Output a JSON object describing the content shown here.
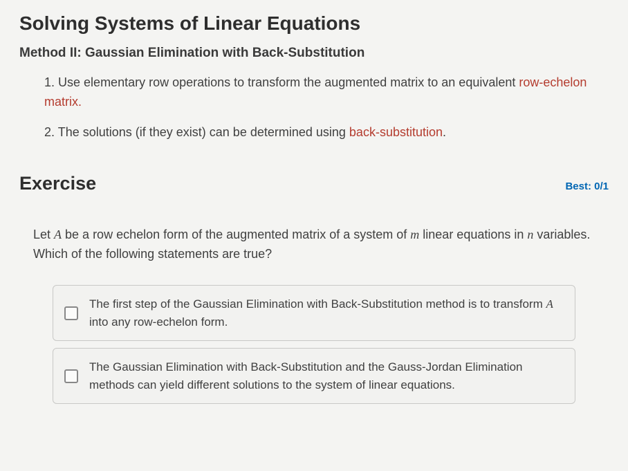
{
  "page_title": "Solving Systems of Linear Equations",
  "subtitle": "Method II: Gaussian Elimination with Back-Substitution",
  "steps": [
    {
      "num": "1.",
      "pre": "Use elementary row operations to transform the augmented matrix to an equivalent ",
      "keyword": "row-echelon matrix.",
      "post": ""
    },
    {
      "num": "2.",
      "pre": "The solutions (if they exist) can be determined using ",
      "keyword": "back-substitution",
      "post": "."
    }
  ],
  "exercise": {
    "title": "Exercise",
    "best_label": "Best: 0/1",
    "question": {
      "seg1": "Let ",
      "var1": "A",
      "seg2": " be a row echelon form of the augmented matrix of a system of ",
      "var2": "m",
      "seg3": " linear equations in ",
      "var3": "n",
      "seg4": " variables. Which of the following statements are true?"
    },
    "options": [
      {
        "seg1": "The first step of the Gaussian Elimination with Back-Substitution method is to transform ",
        "var1": "A",
        "seg2": " into any row-echelon form."
      },
      {
        "seg1": "The Gaussian Elimination with Back-Substitution and the Gauss-Jordan Elimination methods can yield different solutions to the system of linear equations.",
        "var1": "",
        "seg2": ""
      }
    ]
  },
  "colors": {
    "keyword": "#b43c2f",
    "best": "#0066b3",
    "text": "#404040",
    "background": "#f4f4f2",
    "option_border": "#c8c8c6"
  }
}
